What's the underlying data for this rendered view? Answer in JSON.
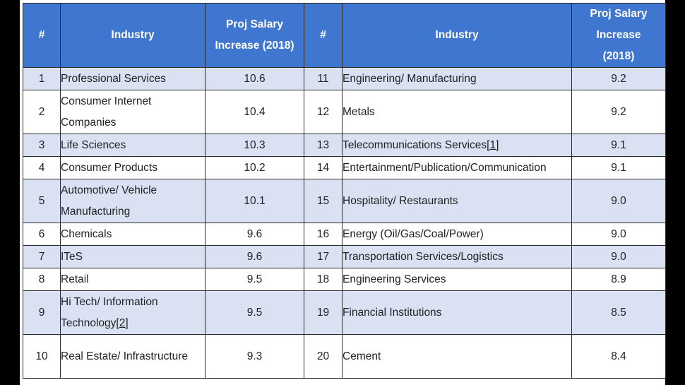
{
  "table": {
    "headers": {
      "num_left": "#",
      "industry_left": "Industry",
      "value_left": "Proj Salary Increase (2018)",
      "num_right": "#",
      "industry_right": "Industry",
      "value_right": "Proj Salary Increase (2018)"
    },
    "rows": [
      {
        "n1": "1",
        "ind1": "Professional Services",
        "ref1": "",
        "v1": "10.6",
        "n2": "11",
        "ind2": "Engineering/ Manufacturing",
        "ref2": "",
        "v2": "9.2"
      },
      {
        "n1": "2",
        "ind1": "Consumer Internet Companies",
        "ref1": "",
        "v1": "10.4",
        "n2": "12",
        "ind2": "Metals",
        "ref2": "",
        "v2": "9.2"
      },
      {
        "n1": "3",
        "ind1": "Life Sciences",
        "ref1": "",
        "v1": "10.3",
        "n2": "13",
        "ind2": "Telecommunications Services",
        "ref2": "[1]",
        "v2": "9.1"
      },
      {
        "n1": "4",
        "ind1": "Consumer Products",
        "ref1": "",
        "v1": "10.2",
        "n2": "14",
        "ind2": "Entertainment/Publication/Communication",
        "ref2": "",
        "v2": "9.1"
      },
      {
        "n1": "5",
        "ind1": "Automotive/ Vehicle Manufacturing",
        "ref1": "",
        "v1": "10.1",
        "n2": "15",
        "ind2": "Hospitality/ Restaurants",
        "ref2": "",
        "v2": "9.0"
      },
      {
        "n1": "6",
        "ind1": "Chemicals",
        "ref1": "",
        "v1": "9.6",
        "n2": "16",
        "ind2": "Energy (Oil/Gas/Coal/Power)",
        "ref2": "",
        "v2": "9.0"
      },
      {
        "n1": "7",
        "ind1": "ITeS",
        "ref1": "",
        "v1": "9.6",
        "n2": "17",
        "ind2": "Transportation Services/Logistics",
        "ref2": "",
        "v2": "9.0"
      },
      {
        "n1": "8",
        "ind1": "Retail",
        "ref1": "",
        "v1": "9.5",
        "n2": "18",
        "ind2": "Engineering Services",
        "ref2": "",
        "v2": "8.9"
      },
      {
        "n1": "9",
        "ind1": "Hi Tech/ Information Technology",
        "ref1": "[2]",
        "v1": "9.5",
        "n2": "19",
        "ind2": "Financial Institutions",
        "ref2": "",
        "v2": "8.5"
      },
      {
        "n1": "10",
        "ind1": "Real Estate/ Infrastructure",
        "ref1": "",
        "v1": "9.3",
        "n2": "20",
        "ind2": "Cement",
        "ref2": "",
        "v2": "8.4"
      }
    ],
    "colors": {
      "header_bg": "#3f76cf",
      "shade_bg": "#d9e1f3",
      "plain_bg": "#ffffff"
    }
  }
}
